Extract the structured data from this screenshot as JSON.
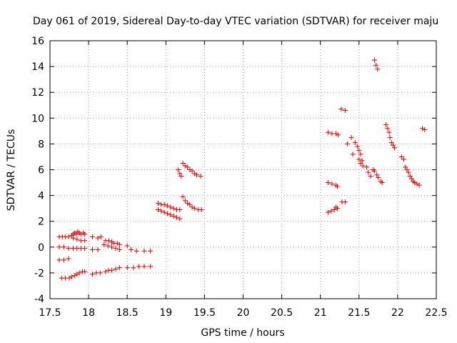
{
  "chart_data": {
    "type": "scatter",
    "title": "Day 061 of 2019, Sidereal Day-to-day VTEC variation (SDTVAR) for receiver maju",
    "xlabel": "GPS time / hours",
    "ylabel": "SDTVAR / TECUs",
    "xlim": [
      17.5,
      22.5
    ],
    "ylim": [
      -4,
      16
    ],
    "xticks": [
      "17.5",
      "18",
      "18.5",
      "19",
      "19.5",
      "20",
      "20.5",
      "21",
      "21.5",
      "22",
      "22.5"
    ],
    "yticks": [
      "-4",
      "-2",
      "0",
      "2",
      "4",
      "6",
      "8",
      "10",
      "12",
      "14",
      "16"
    ],
    "grid": true,
    "marker": "+",
    "color": "#dd0000",
    "series": [
      {
        "name": "SDTVAR",
        "points": [
          [
            17.62,
            0.8
          ],
          [
            17.66,
            0.8
          ],
          [
            17.7,
            0.8
          ],
          [
            17.74,
            0.8
          ],
          [
            17.78,
            0.9
          ],
          [
            17.8,
            1.0
          ],
          [
            17.82,
            1.1
          ],
          [
            17.84,
            1.0
          ],
          [
            17.86,
            1.2
          ],
          [
            17.88,
            1.1
          ],
          [
            17.9,
            1.0
          ],
          [
            17.93,
            1.1
          ],
          [
            17.95,
            1.0
          ],
          [
            17.8,
            0.7
          ],
          [
            17.85,
            0.6
          ],
          [
            17.9,
            0.5
          ],
          [
            17.95,
            0.5
          ],
          [
            18.05,
            0.8
          ],
          [
            18.12,
            0.7
          ],
          [
            18.16,
            0.8
          ],
          [
            18.22,
            0.5
          ],
          [
            18.26,
            0.5
          ],
          [
            18.3,
            0.4
          ],
          [
            18.33,
            0.3
          ],
          [
            18.37,
            0.3
          ],
          [
            18.4,
            0.2
          ],
          [
            17.62,
            0.0
          ],
          [
            17.68,
            0.0
          ],
          [
            17.74,
            -0.1
          ],
          [
            17.8,
            -0.1
          ],
          [
            17.85,
            -0.1
          ],
          [
            17.9,
            -0.1
          ],
          [
            17.95,
            -0.1
          ],
          [
            18.05,
            -0.2
          ],
          [
            18.12,
            -0.2
          ],
          [
            18.2,
            0.2
          ],
          [
            18.25,
            0.1
          ],
          [
            18.3,
            0.0
          ],
          [
            18.35,
            -0.1
          ],
          [
            18.4,
            -0.2
          ],
          [
            18.5,
            0.1
          ],
          [
            18.55,
            -0.2
          ],
          [
            18.62,
            -0.3
          ],
          [
            18.72,
            -0.3
          ],
          [
            18.8,
            -0.3
          ],
          [
            17.62,
            -1.0
          ],
          [
            17.68,
            -1.0
          ],
          [
            17.74,
            -0.9
          ],
          [
            17.65,
            -2.4
          ],
          [
            17.7,
            -2.4
          ],
          [
            17.75,
            -2.4
          ],
          [
            17.78,
            -2.3
          ],
          [
            17.82,
            -2.2
          ],
          [
            17.85,
            -2.1
          ],
          [
            17.88,
            -2.0
          ],
          [
            17.92,
            -1.9
          ],
          [
            17.95,
            -1.9
          ],
          [
            18.05,
            -2.1
          ],
          [
            18.1,
            -2.0
          ],
          [
            18.15,
            -2.0
          ],
          [
            18.22,
            -1.9
          ],
          [
            18.26,
            -1.8
          ],
          [
            18.3,
            -1.8
          ],
          [
            18.35,
            -1.7
          ],
          [
            18.4,
            -1.6
          ],
          [
            18.5,
            -1.6
          ],
          [
            18.58,
            -1.6
          ],
          [
            18.65,
            -1.5
          ],
          [
            18.72,
            -1.5
          ],
          [
            18.8,
            -1.5
          ],
          [
            18.9,
            3.4
          ],
          [
            18.94,
            3.3
          ],
          [
            18.98,
            3.3
          ],
          [
            19.02,
            3.2
          ],
          [
            19.06,
            3.1
          ],
          [
            19.1,
            3.0
          ],
          [
            19.14,
            2.9
          ],
          [
            19.18,
            2.9
          ],
          [
            18.9,
            2.9
          ],
          [
            18.94,
            2.8
          ],
          [
            18.98,
            2.7
          ],
          [
            19.02,
            2.6
          ],
          [
            19.06,
            2.5
          ],
          [
            19.1,
            2.4
          ],
          [
            19.14,
            2.3
          ],
          [
            19.18,
            2.2
          ],
          [
            19.22,
            3.9
          ],
          [
            19.25,
            3.6
          ],
          [
            19.28,
            3.4
          ],
          [
            19.31,
            3.3
          ],
          [
            19.34,
            3.1
          ],
          [
            19.37,
            3.0
          ],
          [
            19.42,
            2.9
          ],
          [
            19.46,
            2.9
          ],
          [
            19.16,
            6.0
          ],
          [
            19.18,
            5.7
          ],
          [
            19.2,
            5.5
          ],
          [
            19.22,
            6.5
          ],
          [
            19.25,
            6.3
          ],
          [
            19.28,
            6.2
          ],
          [
            19.31,
            6.0
          ],
          [
            19.34,
            5.9
          ],
          [
            19.37,
            5.7
          ],
          [
            19.4,
            5.6
          ],
          [
            19.45,
            5.5
          ],
          [
            21.1,
            8.9
          ],
          [
            21.15,
            8.8
          ],
          [
            21.2,
            8.8
          ],
          [
            21.23,
            8.7
          ],
          [
            21.27,
            10.7
          ],
          [
            21.32,
            10.6
          ],
          [
            21.35,
            8.0
          ],
          [
            21.4,
            8.5
          ],
          [
            21.42,
            7.2
          ],
          [
            21.45,
            8.1
          ],
          [
            21.48,
            7.8
          ],
          [
            21.5,
            7.5
          ],
          [
            21.52,
            7.2
          ],
          [
            21.54,
            6.7
          ],
          [
            21.5,
            6.8
          ],
          [
            21.52,
            6.5
          ],
          [
            21.55,
            6.3
          ],
          [
            21.6,
            6.2
          ],
          [
            21.62,
            5.8
          ],
          [
            21.65,
            5.5
          ],
          [
            21.68,
            6.0
          ],
          [
            21.7,
            5.9
          ],
          [
            21.73,
            5.6
          ],
          [
            21.75,
            5.4
          ],
          [
            21.78,
            5.1
          ],
          [
            21.8,
            5.0
          ],
          [
            21.7,
            14.5
          ],
          [
            21.72,
            14.1
          ],
          [
            21.74,
            13.8
          ],
          [
            21.85,
            9.5
          ],
          [
            21.87,
            9.2
          ],
          [
            21.89,
            8.9
          ],
          [
            21.9,
            8.5
          ],
          [
            21.92,
            8.1
          ],
          [
            21.94,
            7.9
          ],
          [
            21.96,
            7.7
          ],
          [
            22.05,
            7.0
          ],
          [
            22.08,
            6.8
          ],
          [
            22.1,
            6.2
          ],
          [
            22.12,
            6.0
          ],
          [
            22.14,
            5.8
          ],
          [
            22.16,
            5.5
          ],
          [
            22.18,
            5.3
          ],
          [
            22.2,
            5.1
          ],
          [
            22.22,
            5.0
          ],
          [
            22.25,
            4.9
          ],
          [
            22.28,
            4.8
          ],
          [
            22.32,
            9.2
          ],
          [
            22.35,
            9.1
          ],
          [
            21.1,
            5.0
          ],
          [
            21.15,
            4.9
          ],
          [
            21.2,
            4.8
          ],
          [
            21.22,
            4.7
          ],
          [
            21.1,
            2.7
          ],
          [
            21.14,
            2.8
          ],
          [
            21.18,
            2.9
          ],
          [
            21.22,
            3.0
          ],
          [
            21.2,
            3.1
          ],
          [
            21.28,
            3.5
          ],
          [
            21.32,
            3.5
          ]
        ]
      }
    ]
  }
}
